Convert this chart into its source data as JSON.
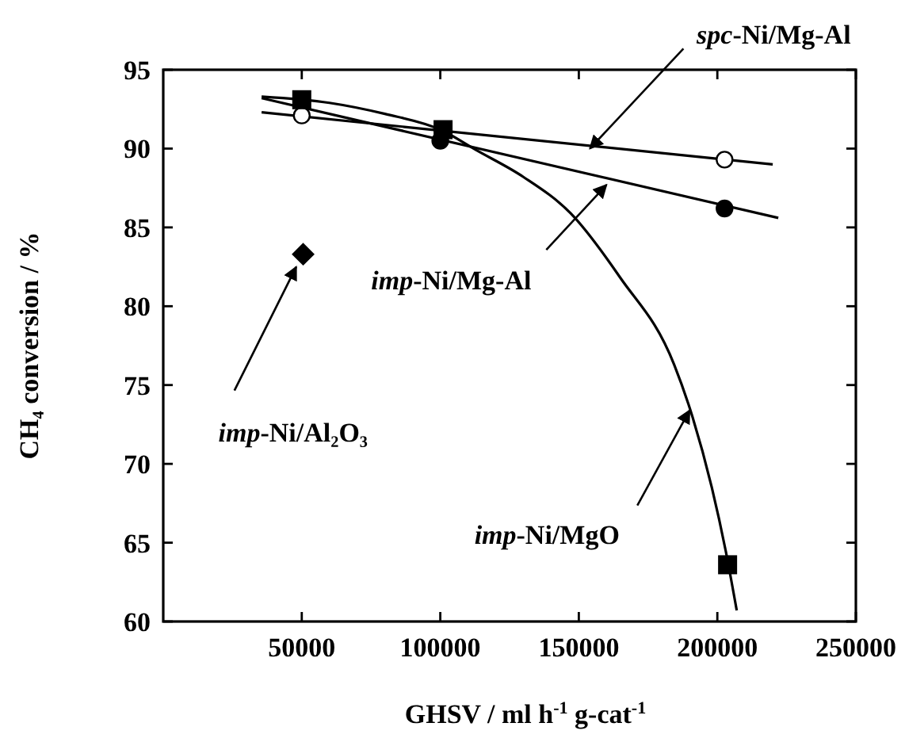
{
  "chart_data": {
    "type": "scatter",
    "xlabel": "GHSV / ml h$^{-1}$ g-cat$^{-1}$",
    "ylabel": "CH₄ conversion / %",
    "xlim": [
      0,
      250000
    ],
    "ylim": [
      60,
      95
    ],
    "xticks": [
      50000,
      100000,
      150000,
      200000,
      250000
    ],
    "yticks": [
      60,
      65,
      70,
      75,
      80,
      85,
      90,
      95
    ],
    "series": [
      {
        "type": "line",
        "color": "#000000",
        "x": [
          35500,
          220000
        ],
        "values": [
          92.3,
          89.0
        ]
      },
      {
        "type": "line",
        "color": "#000000",
        "x": [
          35500,
          222000
        ],
        "values": [
          93.2,
          85.6
        ]
      },
      {
        "type": "line",
        "color": "#000000",
        "x": [
          35500,
          60000,
          80000,
          100000,
          113000,
          130000,
          147000,
          165000,
          184400,
          191000,
          198000,
          203000,
          207000
        ],
        "values": [
          93.3,
          92.9,
          92.2,
          91.2,
          89.9,
          88.2,
          85.9,
          81.8,
          76.3,
          73.0,
          68.5,
          64.5,
          60.7
        ]
      },
      {
        "color": "#ffffff",
        "marker": "circle",
        "x": [
          50000,
          100000,
          202600
        ],
        "values": [
          92.1,
          null,
          89.3
        ]
      },
      {
        "color": "#000000",
        "marker": "circle",
        "x": [
          100000,
          202600
        ],
        "values": [
          90.5,
          86.2
        ]
      },
      {
        "color": "#000000",
        "marker": "square",
        "x": [
          50000,
          101000,
          203700
        ],
        "values": [
          93.1,
          91.2,
          63.6
        ]
      },
      {
        "color": "#000000",
        "marker": "diamond",
        "x": [
          50500
        ],
        "values": [
          83.3
        ]
      }
    ],
    "annotations": [
      {
        "text": "spc-Ni/Mg-Al",
        "x": 154000,
        "y": 90.0
      },
      {
        "text": "imp-Ni/Mg-Al",
        "x": 160000,
        "y": 87.7
      },
      {
        "text": "imp-Ni/Al₂O₃",
        "x": 48000,
        "y": 82.5
      },
      {
        "text": "imp-Ni/MgO",
        "x": 190000,
        "y": 73.4
      }
    ]
  }
}
